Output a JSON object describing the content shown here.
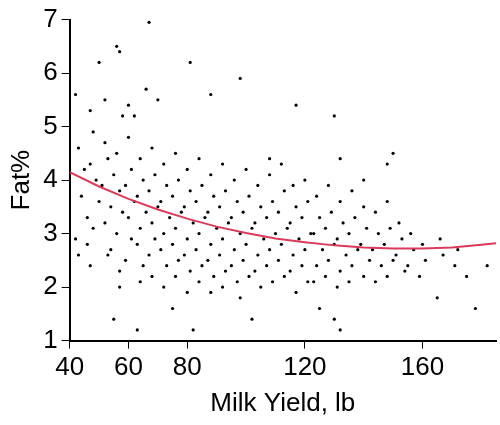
{
  "chart_data": {
    "type": "scatter",
    "x_label": "Milk Yield, lb",
    "y_label": "Fat%",
    "xlim": [
      40,
      185
    ],
    "xticks": [
      40,
      60,
      80,
      120,
      160
    ],
    "ylim": [
      1,
      7
    ],
    "yticks": [
      1,
      2,
      3,
      4,
      5,
      6,
      7
    ],
    "grid": false,
    "series": [
      {
        "type": "scatter",
        "color": "#000000",
        "marker": "circle",
        "x": [
          67,
          56,
          57,
          50,
          81,
          42,
          66,
          70,
          98,
          88,
          47,
          52,
          58,
          60,
          62,
          117,
          130,
          108,
          132,
          148,
          150,
          140,
          55,
          75,
          82,
          63,
          102,
          98,
          125,
          130,
          132,
          178,
          165,
          175,
          43,
          47,
          57,
          43,
          45,
          44,
          46,
          42,
          48,
          47,
          49,
          50,
          48,
          46,
          52,
          53,
          51,
          54,
          52,
          53,
          56,
          55,
          57,
          58,
          56,
          54,
          57,
          60,
          61,
          59,
          62,
          60,
          61,
          59,
          64,
          65,
          63,
          66,
          64,
          63,
          65,
          64,
          68,
          69,
          67,
          70,
          68,
          69,
          67,
          68,
          72,
          73,
          71,
          74,
          72,
          71,
          73,
          72,
          76,
          77,
          75,
          78,
          76,
          75,
          77,
          76,
          80,
          81,
          79,
          82,
          80,
          79,
          81,
          80,
          84,
          85,
          83,
          86,
          84,
          83,
          85,
          84,
          88,
          89,
          87,
          90,
          88,
          87,
          89,
          88,
          92,
          93,
          91,
          94,
          92,
          91,
          93,
          92,
          96,
          97,
          95,
          98,
          96,
          95,
          97,
          100,
          101,
          99,
          102,
          100,
          99,
          101,
          104,
          105,
          103,
          106,
          104,
          103,
          105,
          108,
          109,
          107,
          110,
          108,
          107,
          109,
          112,
          113,
          111,
          114,
          112,
          111,
          113,
          116,
          117,
          115,
          118,
          116,
          115,
          117,
          120,
          121,
          119,
          122,
          120,
          119,
          121,
          124,
          125,
          123,
          126,
          124,
          123,
          128,
          129,
          127,
          130,
          128,
          127,
          132,
          133,
          131,
          134,
          132,
          131,
          136,
          137,
          135,
          138,
          136,
          135,
          140,
          141,
          139,
          142,
          140,
          144,
          145,
          143,
          146,
          144,
          148,
          149,
          147,
          150,
          148,
          152,
          153,
          151,
          154,
          156,
          157,
          155,
          160,
          161,
          159,
          166,
          167,
          172,
          171,
          182
        ],
        "values": [
          6.95,
          6.5,
          6.4,
          6.2,
          6.2,
          5.6,
          5.7,
          5.5,
          5.9,
          5.6,
          5.3,
          5.5,
          5.2,
          5.4,
          5.2,
          5.4,
          5.2,
          4.4,
          4.4,
          4.3,
          4.5,
          4.0,
          1.4,
          1.6,
          1.2,
          1.2,
          1.4,
          1.8,
          1.6,
          1.4,
          1.2,
          1.6,
          1.8,
          2.2,
          2.6,
          2.4,
          2.0,
          4.6,
          4.2,
          3.7,
          3.3,
          2.9,
          4.9,
          4.3,
          4.0,
          3.6,
          3.1,
          2.8,
          4.7,
          4.4,
          3.9,
          3.5,
          3.2,
          2.6,
          4.5,
          4.1,
          3.8,
          3.4,
          3.0,
          2.7,
          2.3,
          4.8,
          4.2,
          3.9,
          3.6,
          3.3,
          2.9,
          2.5,
          4.4,
          4.0,
          3.7,
          3.4,
          3.1,
          2.8,
          2.4,
          2.1,
          4.6,
          4.1,
          3.8,
          3.5,
          3.2,
          2.9,
          2.6,
          2.2,
          4.3,
          3.9,
          3.6,
          3.3,
          3.0,
          2.7,
          2.4,
          2.0,
          4.5,
          4.0,
          3.7,
          3.4,
          3.1,
          2.8,
          2.5,
          2.2,
          4.2,
          3.8,
          3.5,
          3.2,
          2.9,
          2.6,
          2.3,
          1.9,
          4.4,
          3.9,
          3.6,
          3.3,
          3.0,
          2.7,
          2.4,
          2.1,
          4.1,
          3.7,
          3.4,
          3.1,
          2.8,
          2.5,
          2.2,
          1.9,
          4.3,
          3.8,
          3.5,
          3.2,
          2.9,
          2.6,
          2.3,
          2.0,
          4.0,
          3.6,
          3.3,
          3.0,
          2.7,
          2.4,
          2.1,
          4.2,
          3.7,
          3.4,
          3.1,
          2.8,
          2.5,
          2.2,
          3.9,
          3.5,
          3.2,
          2.9,
          2.6,
          2.3,
          2.0,
          4.1,
          3.6,
          3.3,
          3.0,
          2.7,
          2.4,
          2.1,
          4.3,
          3.8,
          3.4,
          3.1,
          2.8,
          2.5,
          2.2,
          3.9,
          3.5,
          3.2,
          2.9,
          2.6,
          2.3,
          1.9,
          4.0,
          3.6,
          3.3,
          3.0,
          2.7,
          2.4,
          2.1,
          3.7,
          3.3,
          3.0,
          2.7,
          2.4,
          2.1,
          3.9,
          3.4,
          3.1,
          2.8,
          2.5,
          2.2,
          3.6,
          3.2,
          2.9,
          2.6,
          2.3,
          2.0,
          3.8,
          3.3,
          3.0,
          2.7,
          2.4,
          2.1,
          3.5,
          3.1,
          2.8,
          2.5,
          2.2,
          3.4,
          3.0,
          2.7,
          2.4,
          2.1,
          3.6,
          3.1,
          2.8,
          2.5,
          2.2,
          3.2,
          2.9,
          2.6,
          2.3,
          3.0,
          2.7,
          2.4,
          2.8,
          2.5,
          2.2,
          2.9,
          2.6,
          2.7,
          2.4,
          2.4
        ]
      },
      {
        "type": "line",
        "color": "#d93b5c",
        "line_style": "solid",
        "x": [
          40,
          50,
          60,
          70,
          80,
          90,
          100,
          110,
          120,
          130,
          140,
          150,
          160,
          170,
          180,
          185
        ],
        "values": [
          4.15,
          3.88,
          3.65,
          3.45,
          3.28,
          3.13,
          3.01,
          2.91,
          2.84,
          2.78,
          2.74,
          2.72,
          2.72,
          2.74,
          2.79,
          2.82
        ]
      }
    ]
  }
}
